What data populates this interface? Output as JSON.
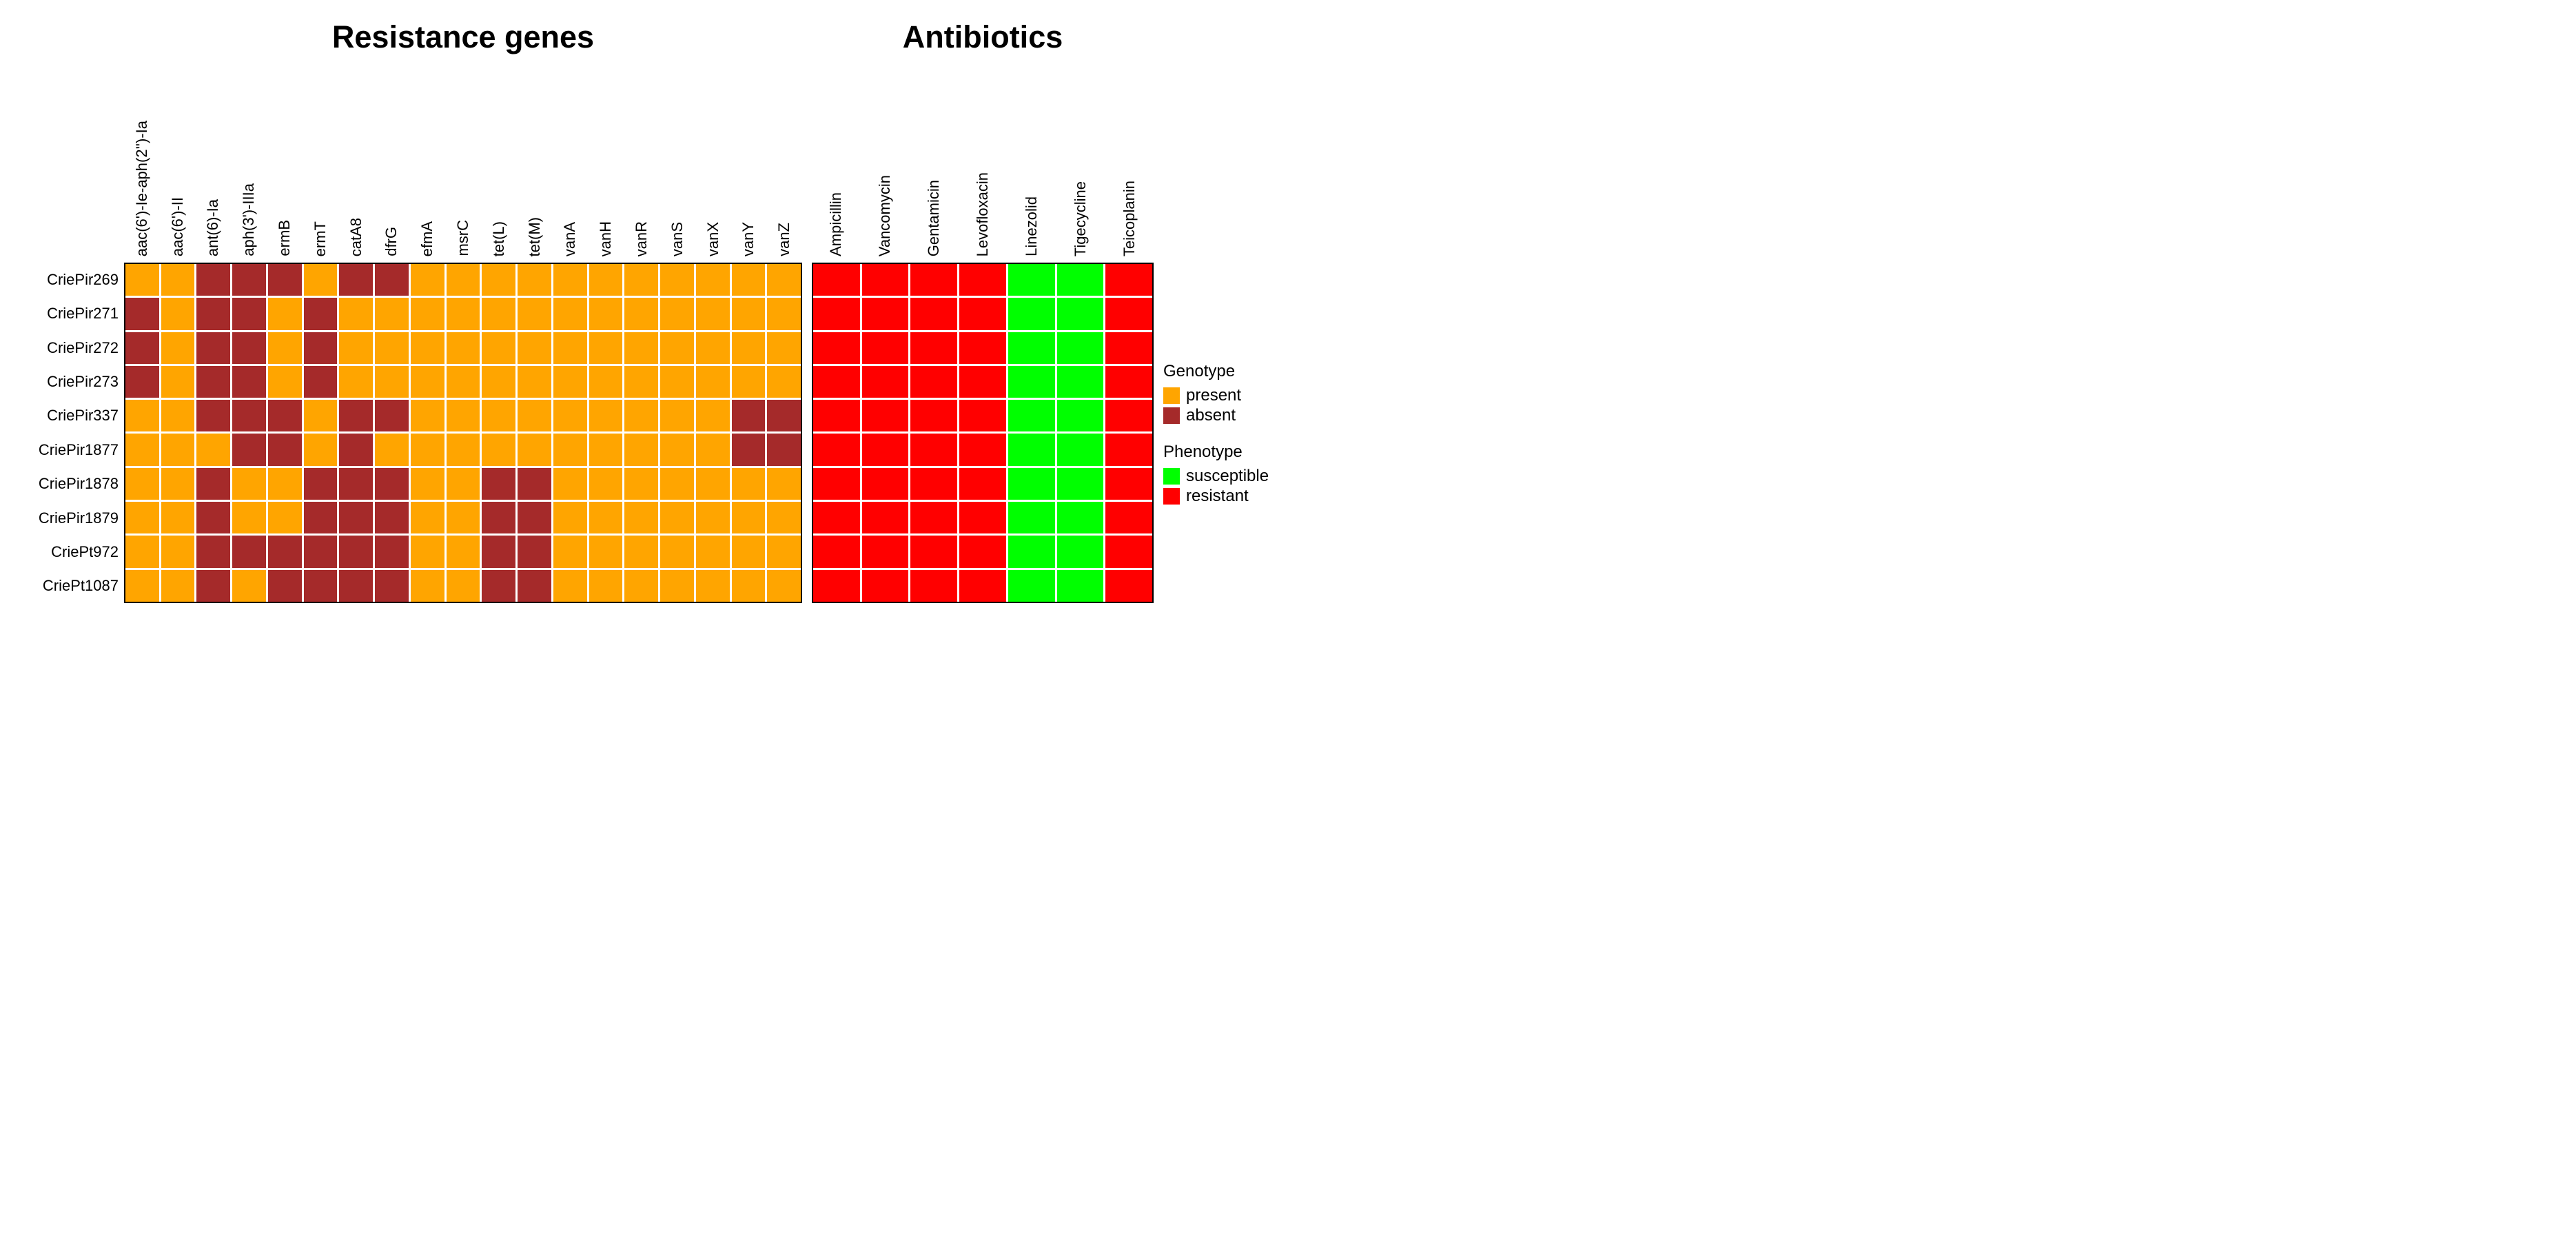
{
  "figure": {
    "background": "#FFFFFF"
  },
  "legend": {
    "genotype_title": "Genotype",
    "present_label": "present",
    "absent_label": "absent",
    "phenotype_title": "Phenotype",
    "susceptible_label": "susceptible",
    "resistant_label": "resistant"
  },
  "chart_data": [
    {
      "type": "heatmap",
      "title": "Resistance genes",
      "legend_title": "Genotype",
      "legend_position": "right",
      "rows": [
        "CriePir269",
        "CriePir271",
        "CriePir272",
        "CriePir273",
        "CriePir337",
        "CriePir1877",
        "CriePir1878",
        "CriePir1879",
        "CriePt972",
        "CriePt1087"
      ],
      "columns": [
        "aac(6')-Ie-aph(2'')-Ia",
        "aac(6')-II",
        "ant(6)-Ia",
        "aph(3')-IIIa",
        "ermB",
        "ermT",
        "catA8",
        "dfrG",
        "efmA",
        "msrC",
        "tet(L)",
        "tet(M)",
        "vanA",
        "vanH",
        "vanR",
        "vanS",
        "vanX",
        "vanY",
        "vanZ"
      ],
      "encoding": {
        "P": "present",
        "A": "absent"
      },
      "colors": {
        "present": "#FFA500",
        "absent": "#A52A2A"
      },
      "matrix": [
        "PPAAAPAAPPPPPPPPPPP",
        "APAAPAPPPPPPPPPPPPP",
        "APAAPAPPPPPPPPPPPPP",
        "APAAPAPPPPPPPPPPPPP",
        "PPAAAPAAPPPPPPPPPAA",
        "PPPAAPAPPPPPPPPPPAA",
        "PPAPPAAAPPAAPPPPPPP",
        "PPAPPAAAPPAAPPPPPPP",
        "PPAAAAAAPPAAPPPPPPP",
        "PPAPAAAAPPAAPPPPPPP"
      ]
    },
    {
      "type": "heatmap",
      "title": "Antibiotics",
      "legend_title": "Phenotype",
      "legend_position": "right",
      "rows": [
        "CriePir269",
        "CriePir271",
        "CriePir272",
        "CriePir273",
        "CriePir337",
        "CriePir1877",
        "CriePir1878",
        "CriePir1879",
        "CriePt972",
        "CriePt1087"
      ],
      "columns": [
        "Ampicillin",
        "Vancomycin",
        "Gentamicin",
        "Levofloxacin",
        "Linezolid",
        "Tigecycline",
        "Teicoplanin"
      ],
      "encoding": {
        "R": "resistant",
        "S": "susceptible"
      },
      "colors": {
        "susceptible": "#00FF00",
        "resistant": "#FF0000"
      },
      "matrix": [
        "RRRRSSR",
        "RRRRSSR",
        "RRRRSSR",
        "RRRRSSR",
        "RRRRSSR",
        "RRRRSSR",
        "RRRRSSR",
        "RRRRSSR",
        "RRRRSSR",
        "RRRRSSR"
      ]
    }
  ]
}
